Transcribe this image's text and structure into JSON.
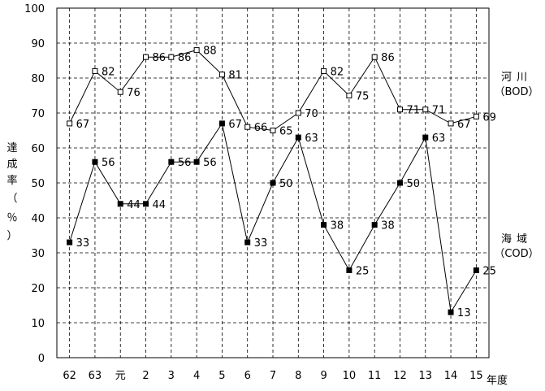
{
  "chart_data": {
    "type": "line",
    "categories": [
      "62",
      "63",
      "元",
      "2",
      "3",
      "4",
      "5",
      "6",
      "7",
      "8",
      "9",
      "10",
      "11",
      "12",
      "13",
      "14",
      "15"
    ],
    "xlabel": "年度",
    "ylabel": [
      "達",
      "成",
      "率",
      "（",
      "％",
      "）"
    ],
    "ylim": [
      0,
      100
    ],
    "yticks": [
      0,
      10,
      20,
      30,
      40,
      50,
      60,
      70,
      80,
      90,
      100
    ],
    "grid": true,
    "series": [
      {
        "key": "river",
        "name": "河川",
        "sub": "（BOD）",
        "marker": "open-square",
        "values": [
          67,
          82,
          76,
          86,
          86,
          88,
          81,
          66,
          65,
          70,
          82,
          75,
          86,
          71,
          71,
          67,
          69
        ]
      },
      {
        "key": "sea",
        "name": "海域",
        "sub": "（COD）",
        "marker": "filled-square",
        "values": [
          33,
          56,
          44,
          44,
          56,
          56,
          67,
          33,
          50,
          63,
          38,
          25,
          38,
          50,
          63,
          13,
          25
        ]
      }
    ]
  }
}
